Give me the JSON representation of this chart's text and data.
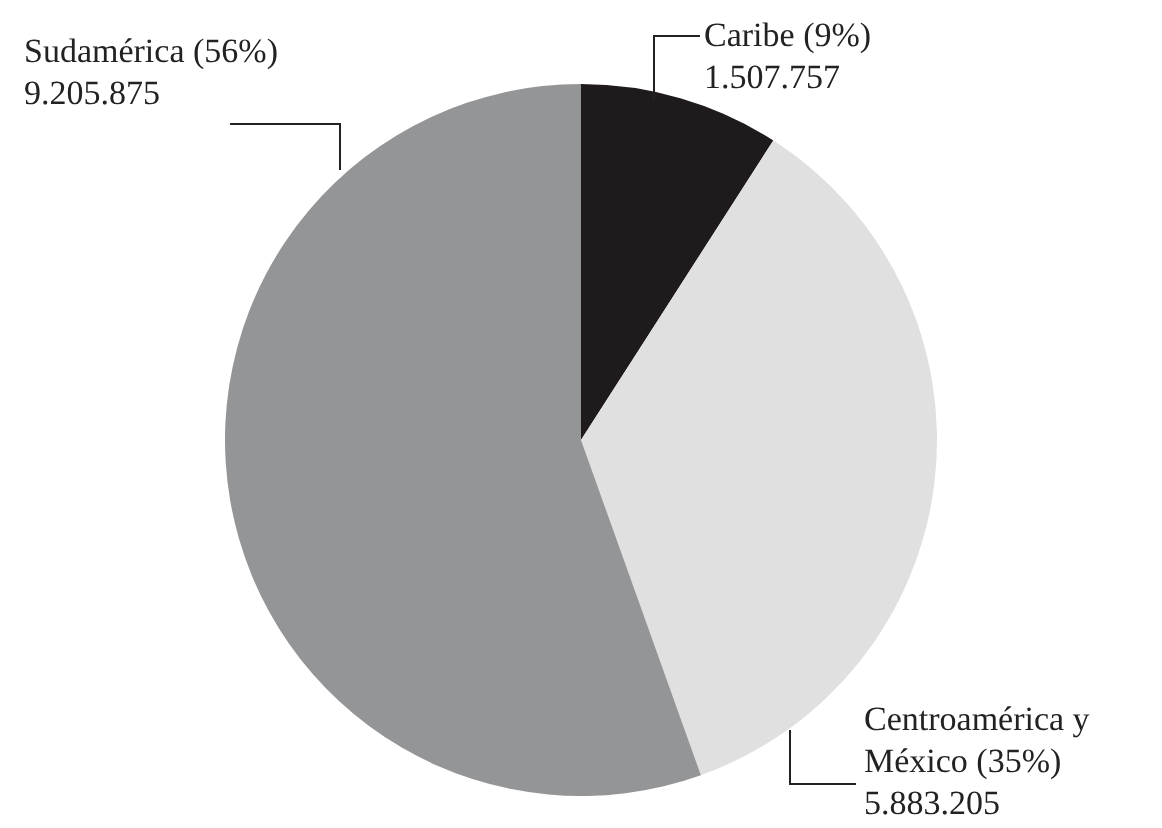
{
  "chart_data": {
    "type": "pie",
    "categories": [
      "Caribe (9%)",
      "Centroamérica y México (35%)",
      "Sudamérica (56%)"
    ],
    "values": [
      1507757,
      5883205,
      9205875
    ],
    "colors": [
      "#1f1b1c",
      "#e0e0e1",
      "#949597"
    ],
    "value_labels": [
      "1.507.757",
      "5.883.205",
      "9.205.875"
    ],
    "legend": false
  }
}
